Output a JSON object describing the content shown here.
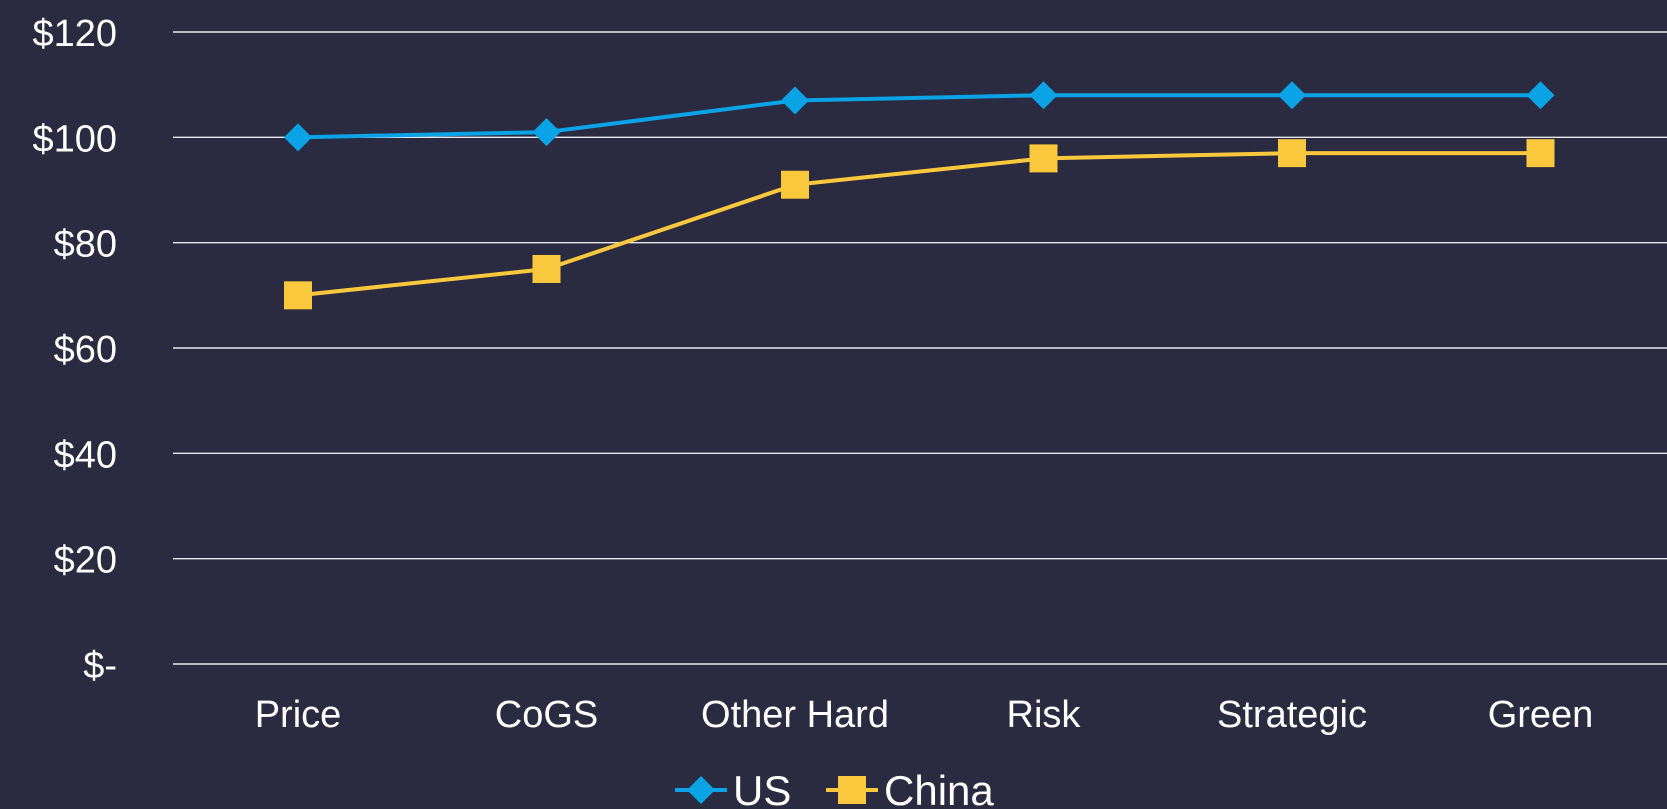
{
  "chart_data": {
    "type": "line",
    "categories": [
      "Price",
      "CoGS",
      "Other Hard",
      "Risk",
      "Strategic",
      "Green"
    ],
    "series": [
      {
        "name": "US",
        "values": [
          100,
          101,
          107,
          108,
          108,
          108
        ],
        "color": "#0aa3e6",
        "marker": "diamond"
      },
      {
        "name": "China",
        "values": [
          70,
          75,
          91,
          96,
          97,
          97
        ],
        "color": "#f9c83c",
        "marker": "square"
      }
    ],
    "y_ticks": [
      {
        "value": 120,
        "label": "$120"
      },
      {
        "value": 100,
        "label": "$100"
      },
      {
        "value": 80,
        "label": "$80"
      },
      {
        "value": 60,
        "label": "$60"
      },
      {
        "value": 40,
        "label": "$40"
      },
      {
        "value": 20,
        "label": "$20"
      },
      {
        "value": 0,
        "label": "$-"
      }
    ],
    "ylim": [
      0,
      120
    ],
    "grid": true,
    "legend_position": "bottom"
  },
  "colors": {
    "background": "#2a2a40",
    "text": "#ffffff",
    "gridline": "#e8e8f0"
  }
}
